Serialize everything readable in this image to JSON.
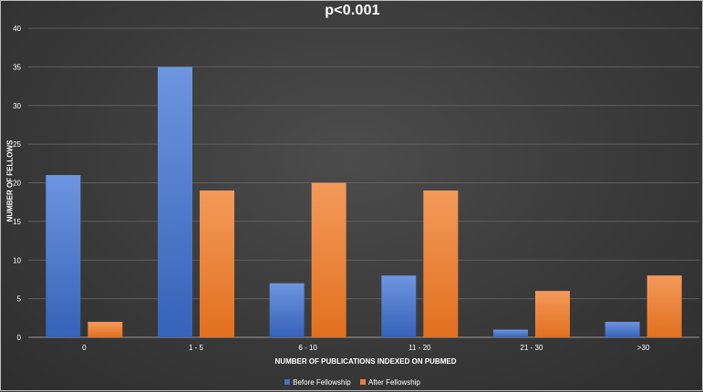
{
  "chart_data": {
    "type": "bar",
    "title": "p<0.001",
    "xlabel": "NUMBER OF PUBLICATIONS INDEXED ON PUBMED",
    "ylabel": "NUMBER OF FELLOWS",
    "categories": [
      "0",
      "1 - 5",
      "6 - 10",
      "11 - 20",
      "21 - 30",
      ">30"
    ],
    "series": [
      {
        "name": "Before Fellowship",
        "color": "#4472c4",
        "values": [
          21,
          35,
          7,
          8,
          1,
          2
        ]
      },
      {
        "name": "After Fellowship",
        "color": "#ed7d31",
        "values": [
          2,
          19,
          20,
          19,
          6,
          8
        ]
      }
    ],
    "ylim": [
      0,
      40
    ],
    "yticks": [
      0,
      5,
      10,
      15,
      20,
      25,
      30,
      35,
      40
    ],
    "grid": true,
    "legend_position": "bottom"
  }
}
